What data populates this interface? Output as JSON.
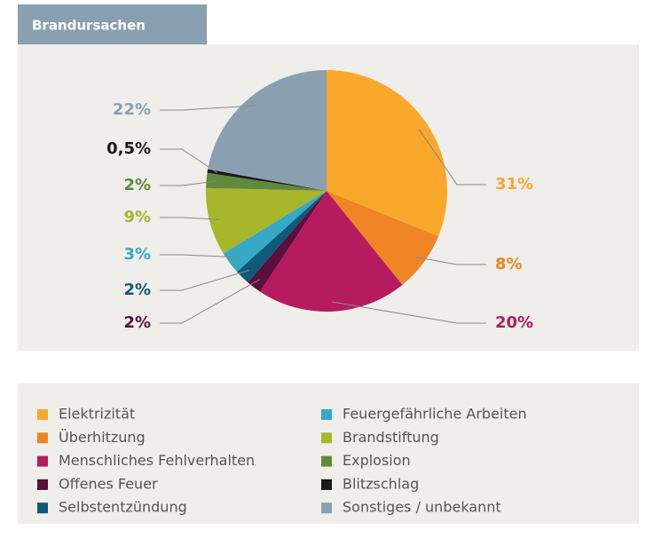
{
  "chart_data": {
    "type": "pie",
    "title": "Brandursachen",
    "categories": [
      "Elektrizität",
      "Überhitzung",
      "Menschliches Fehlverhalten",
      "Offenes Feuer",
      "Selbstentzündung",
      "Feuergefährliche Arbeiten",
      "Brandstiftung",
      "Explosion",
      "Blitzschlag",
      "Sonstiges / unbekannt"
    ],
    "values": [
      31,
      8,
      20,
      2,
      2,
      3,
      9,
      2,
      0.5,
      22
    ],
    "value_labels": [
      "31%",
      "8%",
      "20%",
      "2%",
      "2%",
      "3%",
      "9%",
      "2%",
      "0,5%",
      "22%"
    ],
    "colors": [
      "#f9a82b",
      "#f08526",
      "#b51b5e",
      "#5a0f3c",
      "#0f5a78",
      "#35a9c6",
      "#a8b62c",
      "#5e8a3a",
      "#1a1a1a",
      "#8aa0b1"
    ]
  }
}
